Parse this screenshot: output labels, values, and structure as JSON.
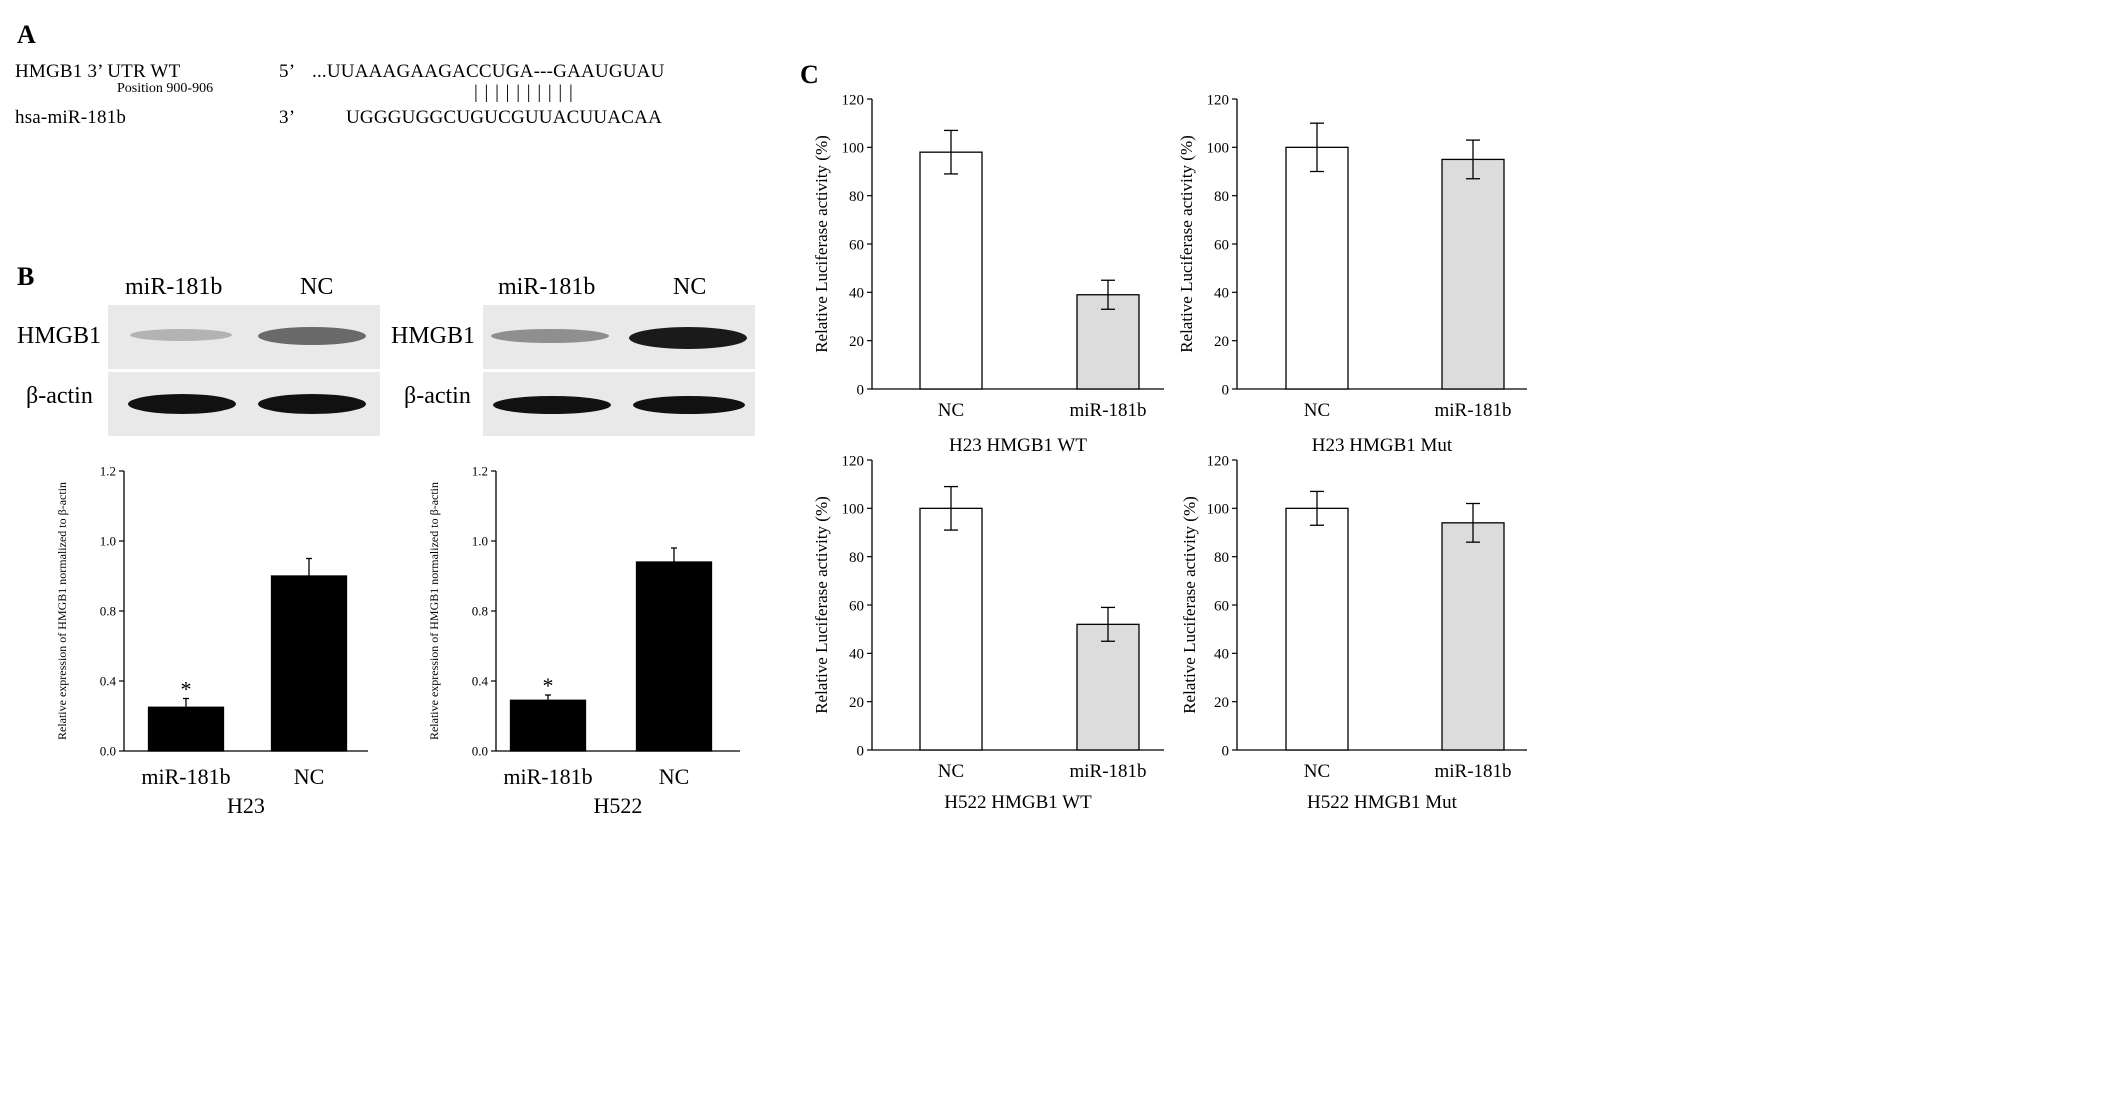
{
  "panelA": {
    "letter": "A",
    "row1_name": "HMGB1 3’ UTR WT",
    "row1_position": "Position 900-906",
    "row1_end": "5’",
    "row1_seq": "...UUAAAGAAGACCUGA---GAAUGUAU",
    "row2_name": "hsa-miR-181b",
    "row2_end": "3’",
    "row2_seq": "UGGGUGGCUGUCGUUACUUACAA",
    "pairing_marks": "| | |        |        | | | | | |"
  },
  "panelB": {
    "letter": "B",
    "blots": [
      {
        "lanes": [
          "miR-181b",
          "NC"
        ],
        "target": "HMGB1",
        "loading": "β-actin"
      },
      {
        "lanes": [
          "miR-181b",
          "NC"
        ],
        "target": "HMGB1",
        "loading": "β-actin"
      }
    ]
  },
  "panelC": {
    "letter": "C"
  },
  "chart_data": [
    {
      "type": "bar",
      "panel": "B",
      "categories": [
        "miR-181b",
        "NC"
      ],
      "values": [
        0.25,
        0.9
      ],
      "errors": [
        0.05,
        0.05
      ],
      "significance": [
        "*",
        ""
      ],
      "xlabel": "H23",
      "ylabel": "Relative expression of HMGB1 normalized to β-actin",
      "ylim": [
        0,
        1.2
      ],
      "yticks": [
        "0.0",
        "0.4",
        "0.8",
        "1.0",
        "1.2"
      ],
      "colors": [
        "#000000",
        "#000000"
      ]
    },
    {
      "type": "bar",
      "panel": "B",
      "categories": [
        "miR-181b",
        "NC"
      ],
      "values": [
        0.29,
        0.94
      ],
      "errors": [
        0.03,
        0.04
      ],
      "significance": [
        "*",
        ""
      ],
      "xlabel": "H522",
      "ylabel": "Relative expression of HMGB1 normalized to β-actin",
      "ylim": [
        0,
        1.2
      ],
      "yticks": [
        "0.0",
        "0.4",
        "0.8",
        "1.0",
        "1.2"
      ],
      "colors": [
        "#000000",
        "#000000"
      ]
    },
    {
      "type": "bar",
      "panel": "C",
      "categories": [
        "NC",
        "miR-181b"
      ],
      "values": [
        98,
        39
      ],
      "errors": [
        9,
        6
      ],
      "xlabel": "H23 HMGB1 WT",
      "ylabel": "Relative Luciferase activity (%)",
      "ylim": [
        0,
        120
      ],
      "yticks": [
        "0",
        "20",
        "40",
        "60",
        "80",
        "100",
        "120"
      ],
      "colors": [
        "#ffffff",
        "#dcdcdc"
      ]
    },
    {
      "type": "bar",
      "panel": "C",
      "categories": [
        "NC",
        "miR-181b"
      ],
      "values": [
        100,
        95
      ],
      "errors": [
        10,
        8
      ],
      "xlabel": "H23 HMGB1 Mut",
      "ylabel": "Relative Luciferase activity (%)",
      "ylim": [
        0,
        120
      ],
      "yticks": [
        "0",
        "20",
        "40",
        "60",
        "80",
        "100",
        "120"
      ],
      "colors": [
        "#ffffff",
        "#dcdcdc"
      ]
    },
    {
      "type": "bar",
      "panel": "C",
      "categories": [
        "NC",
        "miR-181b"
      ],
      "values": [
        100,
        52
      ],
      "errors": [
        9,
        7
      ],
      "xlabel": "H522 HMGB1 WT",
      "ylabel": "Relative Luciferase activity (%)",
      "ylim": [
        0,
        120
      ],
      "yticks": [
        "0",
        "20",
        "40",
        "60",
        "80",
        "100",
        "120"
      ],
      "colors": [
        "#ffffff",
        "#dcdcdc"
      ]
    },
    {
      "type": "bar",
      "panel": "C",
      "categories": [
        "NC",
        "miR-181b"
      ],
      "values": [
        100,
        94
      ],
      "errors": [
        7,
        8
      ],
      "xlabel": "H522 HMGB1 Mut",
      "ylabel": "Relative Luciferase activity (%)",
      "ylim": [
        0,
        120
      ],
      "yticks": [
        "0",
        "20",
        "40",
        "60",
        "80",
        "100",
        "120"
      ],
      "colors": [
        "#ffffff",
        "#dcdcdc"
      ]
    }
  ]
}
